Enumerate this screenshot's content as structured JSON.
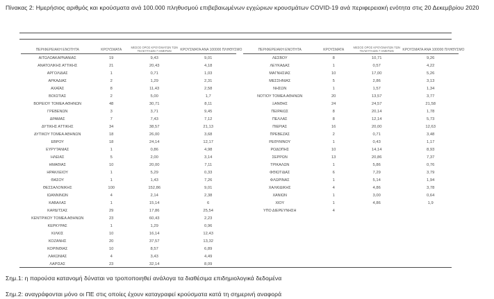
{
  "document": {
    "title": "Πίνακας 2:  Ημερήσιος αριθμός και κρούσματα ανά 100.000 πληθυσμού επιβεβαιωμένων εγχώριων κρουσμάτων COVID-19 ανά περιφερειακή ενότητα στις 20 Δεκεμβρίου 2020"
  },
  "table": {
    "columns": {
      "region": "ΠΕΡΙΦΕΡΕΙΑΚΗ ΕΝΟΤΗΤΑ",
      "cases": "ΚΡΟΥΣΜΑΤΑ",
      "avg_line1": "ΜΕΣΟΣ ΟΡΟΣ ΚΡΟΥΣΜΑΤΩΝ ΤΩΝ",
      "avg_line2": "ΤΕΛΕΥΤΑΙΩΝ 7 ΗΜΕΡΩΝ",
      "per100k": "ΚΡΟΥΣΜΑΤΑ ΑΝΑ 100000 ΠΛΗΘΥΣΜΟ"
    },
    "left_rows": [
      [
        "ΑΙΤΩΛΟΑΚΑΡΝΑΝΙΑΣ",
        "19",
        "9,43",
        "9,01"
      ],
      [
        "ΑΝΑΤΟΛΙΚΗΣ ΑΤΤΙΚΗΣ",
        "21",
        "20,43",
        "4,18"
      ],
      [
        "ΑΡΓΟΛΙΔΑΣ",
        "1",
        "0,71",
        "1,03"
      ],
      [
        "ΑΡΚΑΔΙΑΣ",
        "2",
        "1,29",
        "2,31"
      ],
      [
        "ΑΧΑΪΑΣ",
        "8",
        "11,43",
        "2,58"
      ],
      [
        "ΒΟΙΩΤΙΑΣ",
        "2",
        "5,00",
        "1,7"
      ],
      [
        "ΒΟΡΕΙΟΥ ΤΟΜΕΑ ΑΘΗΝΩΝ",
        "48",
        "30,71",
        "8,11"
      ],
      [
        "ΓΡΕΒΕΝΩΝ",
        "3",
        "3,71",
        "9,45"
      ],
      [
        "ΔΡΑΜΑΣ",
        "7",
        "7,43",
        "7,12"
      ],
      [
        "ΔΥΤΙΚΗΣ ΑΤΤΙΚΗΣ",
        "34",
        "38,57",
        "21,13"
      ],
      [
        "ΔΥΤΙΚΟΥ ΤΟΜΕΑ ΑΘΗΝΩΝ",
        "18",
        "26,00",
        "3,68"
      ],
      [
        "ΕΒΡΟΥ",
        "18",
        "24,14",
        "12,17"
      ],
      [
        "ΕΥΡΥΤΑΝΙΑΣ",
        "1",
        "0,86",
        "4,98"
      ],
      [
        "ΗΛΕΙΑΣ",
        "5",
        "2,00",
        "3,14"
      ],
      [
        "ΗΜΑΘΙΑΣ",
        "10",
        "20,00",
        "7,11"
      ],
      [
        "ΗΡΑΚΛΕΙΟΥ",
        "1",
        "5,29",
        "0,33"
      ],
      [
        "ΘΑΣΟΥ",
        "1",
        "1,43",
        "7,26"
      ],
      [
        "ΘΕΣΣΑΛΟΝΙΚΗΣ",
        "100",
        "152,86",
        "9,01"
      ],
      [
        "ΙΩΑΝΝΙΝΩΝ",
        "4",
        "2,14",
        "2,38"
      ],
      [
        "ΚΑΒΑΛΑΣ",
        "1",
        "15,14",
        "6"
      ],
      [
        "ΚΑΡΔΙΤΣΑΣ",
        "29",
        "17,86",
        "25,54"
      ],
      [
        "ΚΕΝΤΡΙΚΟΥ ΤΟΜΕΑ ΑΘΗΝΩΝ",
        "23",
        "60,43",
        "2,23"
      ],
      [
        "ΚΕΡΚΥΡΑΣ",
        "1",
        "1,29",
        "0,96"
      ],
      [
        "ΚΙΛΚΙΣ",
        "10",
        "16,14",
        "12,43"
      ],
      [
        "ΚΟΖΑΝΗΣ",
        "20",
        "37,57",
        "13,32"
      ],
      [
        "ΚΟΡΙΝΘΙΑΣ",
        "10",
        "8,57",
        "6,89"
      ],
      [
        "ΛΑΚΩΝΙΑΣ",
        "4",
        "3,43",
        "4,49"
      ],
      [
        "ΛΑΡΙΣΑΣ",
        "23",
        "32,14",
        "8,09"
      ]
    ],
    "right_rows": [
      [
        "ΛΕΣΒΟΥ",
        "8",
        "10,71",
        "9,26"
      ],
      [
        "ΛΕΥΚΑΔΑΣ",
        "1",
        "0,57",
        "4,22"
      ],
      [
        "ΜΑΓΝΗΣΙΑΣ",
        "10",
        "17,00",
        "5,26"
      ],
      [
        "ΜΕΣΣΗΝΙΑΣ",
        "5",
        "2,86",
        "3,13"
      ],
      [
        "ΝΗΣΩΝ",
        "1",
        "1,57",
        "1,34"
      ],
      [
        "ΝΟΤΙΟΥ ΤΟΜΕΑ ΑΘΗΝΩΝ",
        "20",
        "13,57",
        "3,77"
      ],
      [
        "ΞΑΝΘΗΣ",
        "24",
        "24,57",
        "21,58"
      ],
      [
        "ΠΕΙΡΑΙΩΣ",
        "8",
        "20,14",
        "1,78"
      ],
      [
        "ΠΕΛΛΑΣ",
        "8",
        "12,14",
        "5,73"
      ],
      [
        "ΠΙΕΡΙΑΣ",
        "16",
        "20,00",
        "12,63"
      ],
      [
        "ΠΡΕΒΕΖΑΣ",
        "2",
        "0,71",
        "3,48"
      ],
      [
        "ΡΕΘΥΜΝΟΥ",
        "1",
        "0,43",
        "1,17"
      ],
      [
        "ΡΟΔΟΠΗΣ",
        "10",
        "14,14",
        "8,93"
      ],
      [
        "ΣΕΡΡΩΝ",
        "13",
        "20,86",
        "7,37"
      ],
      [
        "ΤΡΙΚΑΛΩΝ",
        "1",
        "5,86",
        "0,76"
      ],
      [
        "ΦΘΙΩΤΙΔΑΣ",
        "6",
        "7,29",
        "3,79"
      ],
      [
        "ΦΛΩΡΙΝΑΣ",
        "1",
        "5,14",
        "1,94"
      ],
      [
        "ΧΑΛΚΙΔΙΚΗΣ",
        "4",
        "4,86",
        "3,78"
      ],
      [
        "ΧΑΝΙΩΝ",
        "1",
        "3,00",
        "0,64"
      ],
      [
        "ΧΙΟΥ",
        "1",
        "4,86",
        "1,9"
      ],
      [
        "ΥΠΟ ΔΙΕΡΕΥΝΗΣΗ",
        "4",
        "",
        ""
      ]
    ]
  },
  "notes": [
    "Σημ.1: η παρούσα κατανομή δύναται να τροποποιηθεί ανάλογα τα διαθέσιμα επιδημιολογικά δεδομένα",
    "Σημ.2: αναγράφονται μόνο οι ΠΕ στις οποίες έχουν καταγραφεί κρούσματα κατά τη σημερινή αναφορά"
  ],
  "colors": {
    "text": "#2f2f2f",
    "table_text": "#4d4d4d",
    "rule": "#4a4a4a",
    "background": "#ffffff"
  }
}
